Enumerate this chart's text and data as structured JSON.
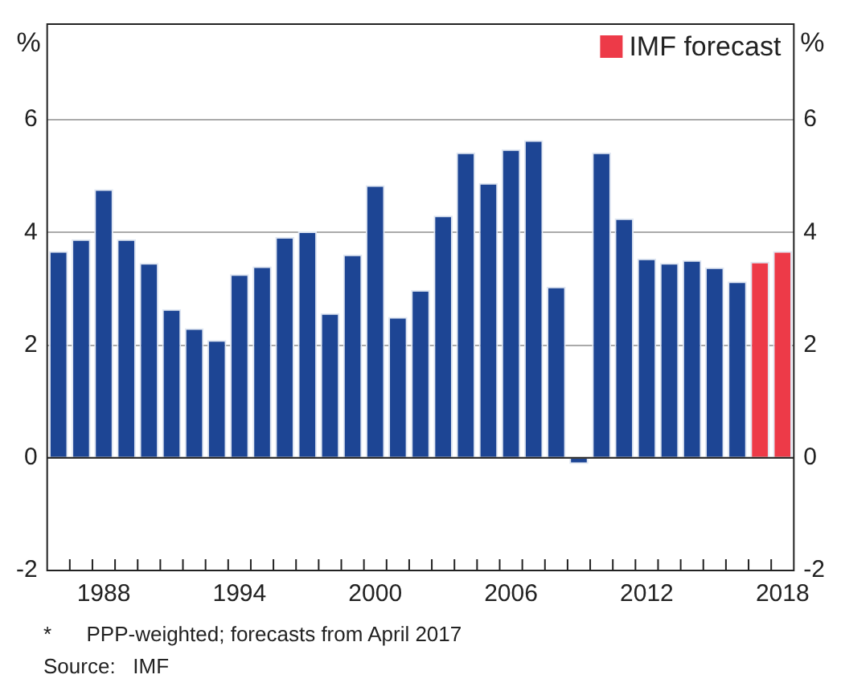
{
  "chart_data": {
    "type": "bar",
    "ylabel": "%",
    "y2label": "%",
    "categories": [
      null,
      null,
      "1988",
      null,
      null,
      null,
      null,
      null,
      "1994",
      null,
      null,
      null,
      null,
      null,
      "2000",
      null,
      null,
      null,
      null,
      null,
      "2006",
      null,
      null,
      null,
      null,
      null,
      "2012",
      null,
      null,
      null,
      null,
      null,
      "2018"
    ],
    "series": [
      {
        "color": "#1d4594",
        "values": [
          3.67,
          3.88,
          4.77,
          3.88,
          3.46,
          2.64,
          2.3,
          2.09,
          3.26,
          3.4,
          3.92,
          4.02,
          2.57,
          3.61,
          4.84,
          2.5,
          2.98,
          4.3,
          5.42,
          4.88,
          5.48,
          5.64,
          3.04,
          -0.11,
          5.42,
          4.25,
          3.54,
          3.46,
          3.51,
          3.38,
          3.13,
          null,
          null
        ]
      },
      {
        "name": "IMF forecast",
        "color": "#ed3a48",
        "values": [
          null,
          null,
          null,
          null,
          null,
          null,
          null,
          null,
          null,
          null,
          null,
          null,
          null,
          null,
          null,
          null,
          null,
          null,
          null,
          null,
          null,
          null,
          null,
          null,
          null,
          null,
          null,
          null,
          null,
          null,
          null,
          3.48,
          3.67
        ]
      }
    ],
    "ylim": [
      -2,
      7.7
    ],
    "yticks": [
      -2,
      0,
      2,
      4,
      6
    ],
    "y2lim": [
      -2,
      7.7
    ],
    "y2ticks": [
      -2,
      0,
      2,
      4,
      6
    ],
    "grid": "y",
    "legend": "top right",
    "annotations": [
      "*      PPP-weighted; forecasts from April 2017",
      "Source:   IMF"
    ]
  }
}
